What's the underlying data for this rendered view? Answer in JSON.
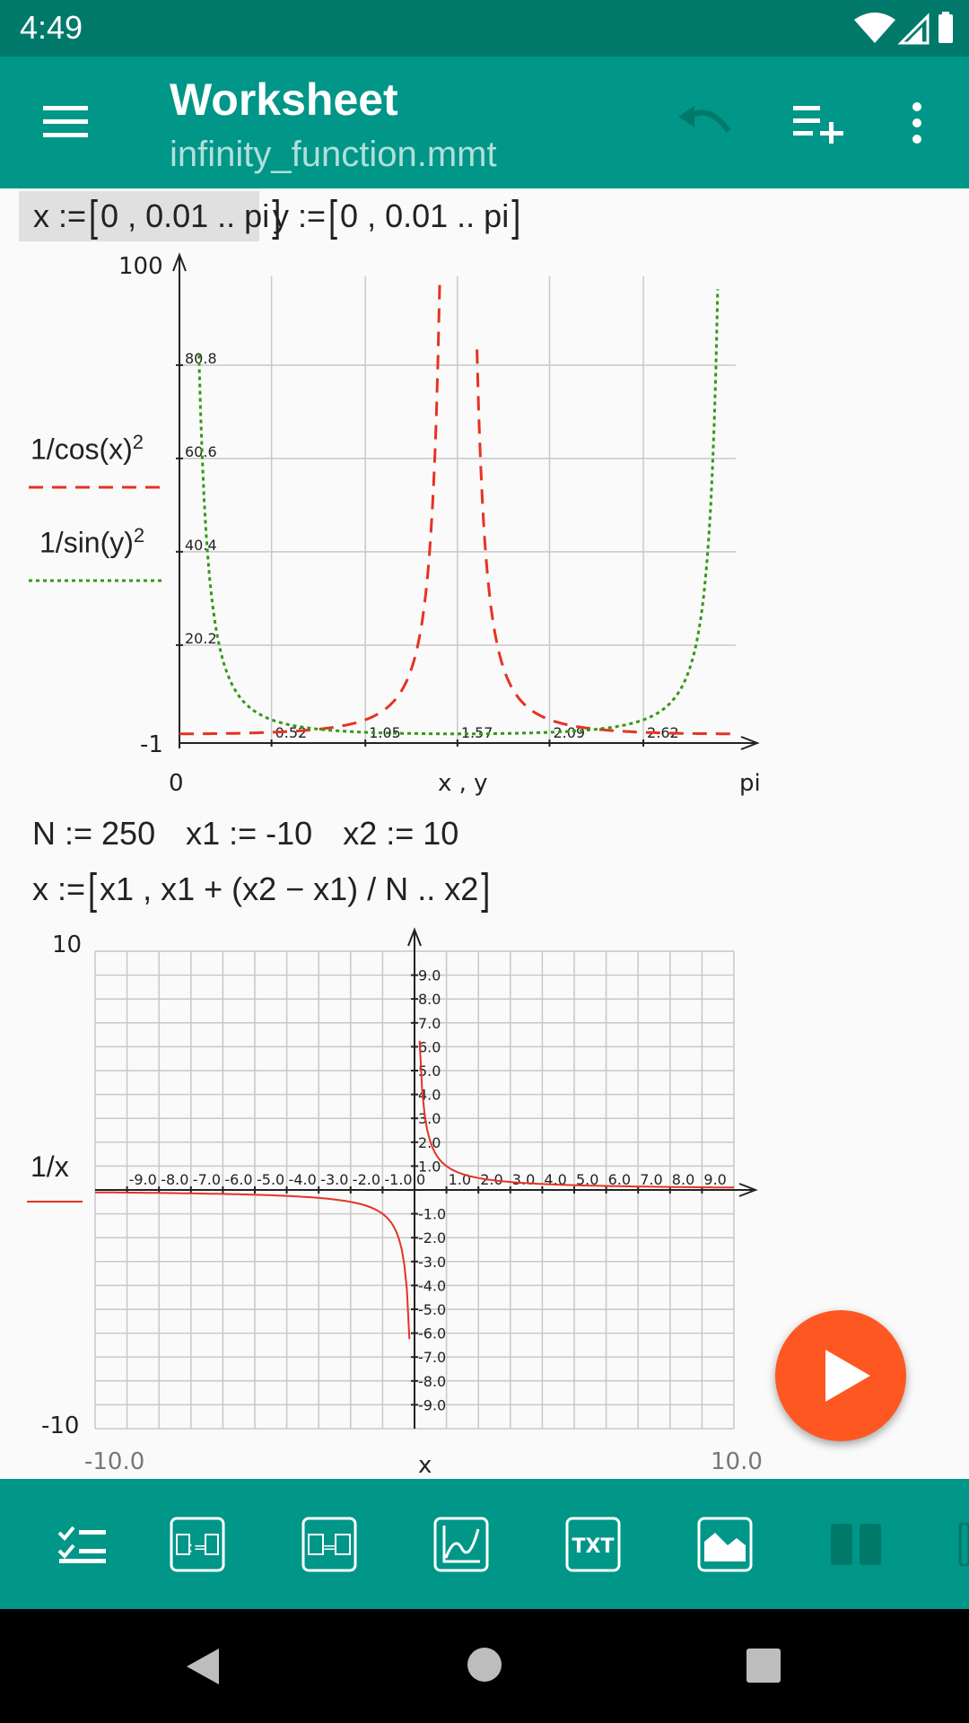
{
  "status_bar": {
    "time": "4:49"
  },
  "app_bar": {
    "title": "Worksheet",
    "subtitle": "infinity_function.mmt",
    "icons": [
      "menu-icon",
      "undo-icon",
      "add-line-icon",
      "more-vert-icon"
    ]
  },
  "colors": {
    "primary": "#009688",
    "status": "#00796b",
    "fab": "#ff5722",
    "red_curve": "#e53323",
    "green_curve": "#339914"
  },
  "section1": {
    "def_x": {
      "lhs": "x",
      "a": "0",
      "b": "0.01 .. pi"
    },
    "def_y": {
      "lhs": "y",
      "a": "0",
      "b": "0.01 .. pi"
    }
  },
  "plot1": {
    "y_max_label": "100",
    "y_min_label": "-1",
    "x_min_label": "0",
    "x_max_label": "pi",
    "x_axis_label": "x , y",
    "legend1": {
      "expr": "1/cos(x)",
      "exp": "2"
    },
    "legend2": {
      "expr": "1/sin(y)",
      "exp": "2"
    },
    "y_ticks": [
      "80.8",
      "60.6",
      "40.4",
      "20.2"
    ],
    "x_ticks": [
      "0.52",
      "1.05",
      "1.57",
      "2.09",
      "2.62"
    ]
  },
  "section2": {
    "line1": {
      "n": "N := 250",
      "x1": "x1 := -10",
      "x2": "x2 := 10"
    },
    "line2": {
      "lhs": "x :=",
      "a": "x1 , x1 + (x2 − x1) / N",
      "b": ".. x2"
    }
  },
  "plot2": {
    "y_max_label": "10",
    "y_min_label": "-10",
    "x_min_label": "-10.0",
    "x_max_label": "10.0",
    "x_axis_label": "x",
    "legend": "1/x",
    "x_ticks_neg": [
      "-9.0",
      "-8.0",
      "-7.0",
      "-6.0",
      "-5.0",
      "-4.0",
      "-3.0",
      "-2.0",
      "-1.0"
    ],
    "x_ticks_pos": [
      "0",
      "1.0",
      "2.0",
      "3.0",
      "4.0",
      "5.0",
      "6.0",
      "7.0",
      "8.0",
      "9.0"
    ],
    "y_ticks_pos": [
      "9.0",
      "8.0",
      "7.0",
      "6.0",
      "5.0",
      "4.0",
      "3.0",
      "2.0",
      "1.0"
    ],
    "y_ticks_neg": [
      "-1.0",
      "-2.0",
      "-3.0",
      "-4.0",
      "-5.0",
      "-6.0",
      "-7.0",
      "-8.0",
      "-9.0"
    ]
  },
  "chart_data": [
    {
      "type": "line",
      "xlabel": "x , y",
      "xlim": [
        0,
        3.1416
      ],
      "ylim": [
        -1,
        100
      ],
      "series": [
        {
          "name": "1/cos(x)^2",
          "x_start": 0,
          "x_step": 0.01,
          "x_end": 3.14
        },
        {
          "name": "1/sin(y)^2",
          "x_start": 0,
          "x_step": 0.01,
          "x_end": 3.14
        }
      ]
    },
    {
      "type": "line",
      "xlabel": "x",
      "xlim": [
        -10,
        10
      ],
      "ylim": [
        -10,
        10
      ],
      "series": [
        {
          "name": "1/x",
          "x_start": -10,
          "x_end": 10,
          "points": 250
        }
      ]
    }
  ],
  "toolbar": {
    "items": [
      "checklist-icon",
      "define-icon",
      "evaluate-icon",
      "plot-icon",
      "text-icon",
      "image-icon",
      "columns-icon"
    ],
    "txt_label": "TXT"
  },
  "fab": {
    "icon": "play-icon"
  },
  "nav": {
    "items": [
      "back-icon",
      "home-icon",
      "recents-icon"
    ]
  }
}
